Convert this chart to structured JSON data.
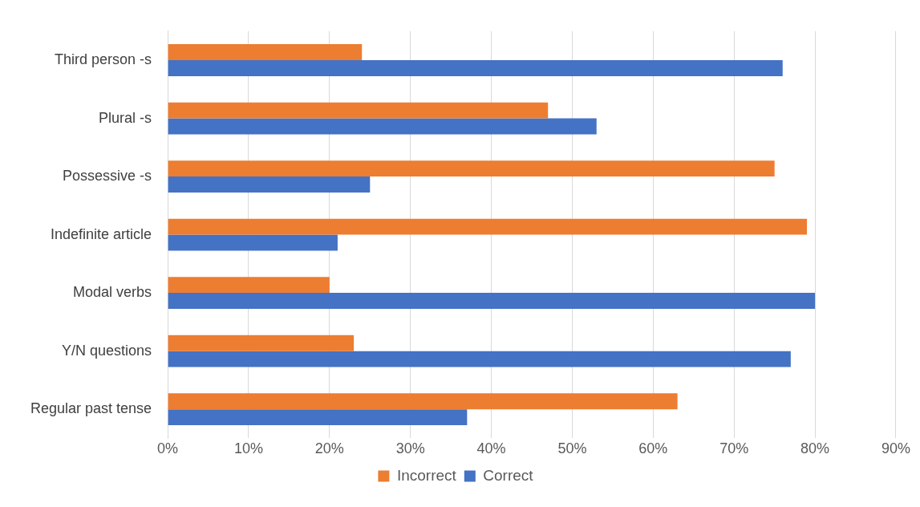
{
  "chart_data": {
    "type": "bar",
    "orientation": "horizontal",
    "categories": [
      "Third person -s",
      "Plural -s",
      "Possessive -s",
      "Indefinite article",
      "Modal verbs",
      "Y/N questions",
      "Regular past tense"
    ],
    "series": [
      {
        "name": "Incorrect",
        "color": "#ed7d31",
        "values": [
          24,
          47,
          75,
          79,
          20,
          23,
          63
        ]
      },
      {
        "name": "Correct",
        "color": "#4472c4",
        "values": [
          76,
          53,
          25,
          21,
          80,
          77,
          37
        ]
      }
    ],
    "xlim": [
      0,
      90
    ],
    "xticks": [
      {
        "value": 0,
        "label": "0%"
      },
      {
        "value": 10,
        "label": "10%"
      },
      {
        "value": 20,
        "label": "20%"
      },
      {
        "value": 30,
        "label": "30%"
      },
      {
        "value": 40,
        "label": "40%"
      },
      {
        "value": 50,
        "label": "50%"
      },
      {
        "value": 60,
        "label": "60%"
      },
      {
        "value": 70,
        "label": "70%"
      },
      {
        "value": 80,
        "label": "80%"
      },
      {
        "value": 90,
        "label": "90%"
      }
    ],
    "grid": "x",
    "legend": "bottom"
  }
}
